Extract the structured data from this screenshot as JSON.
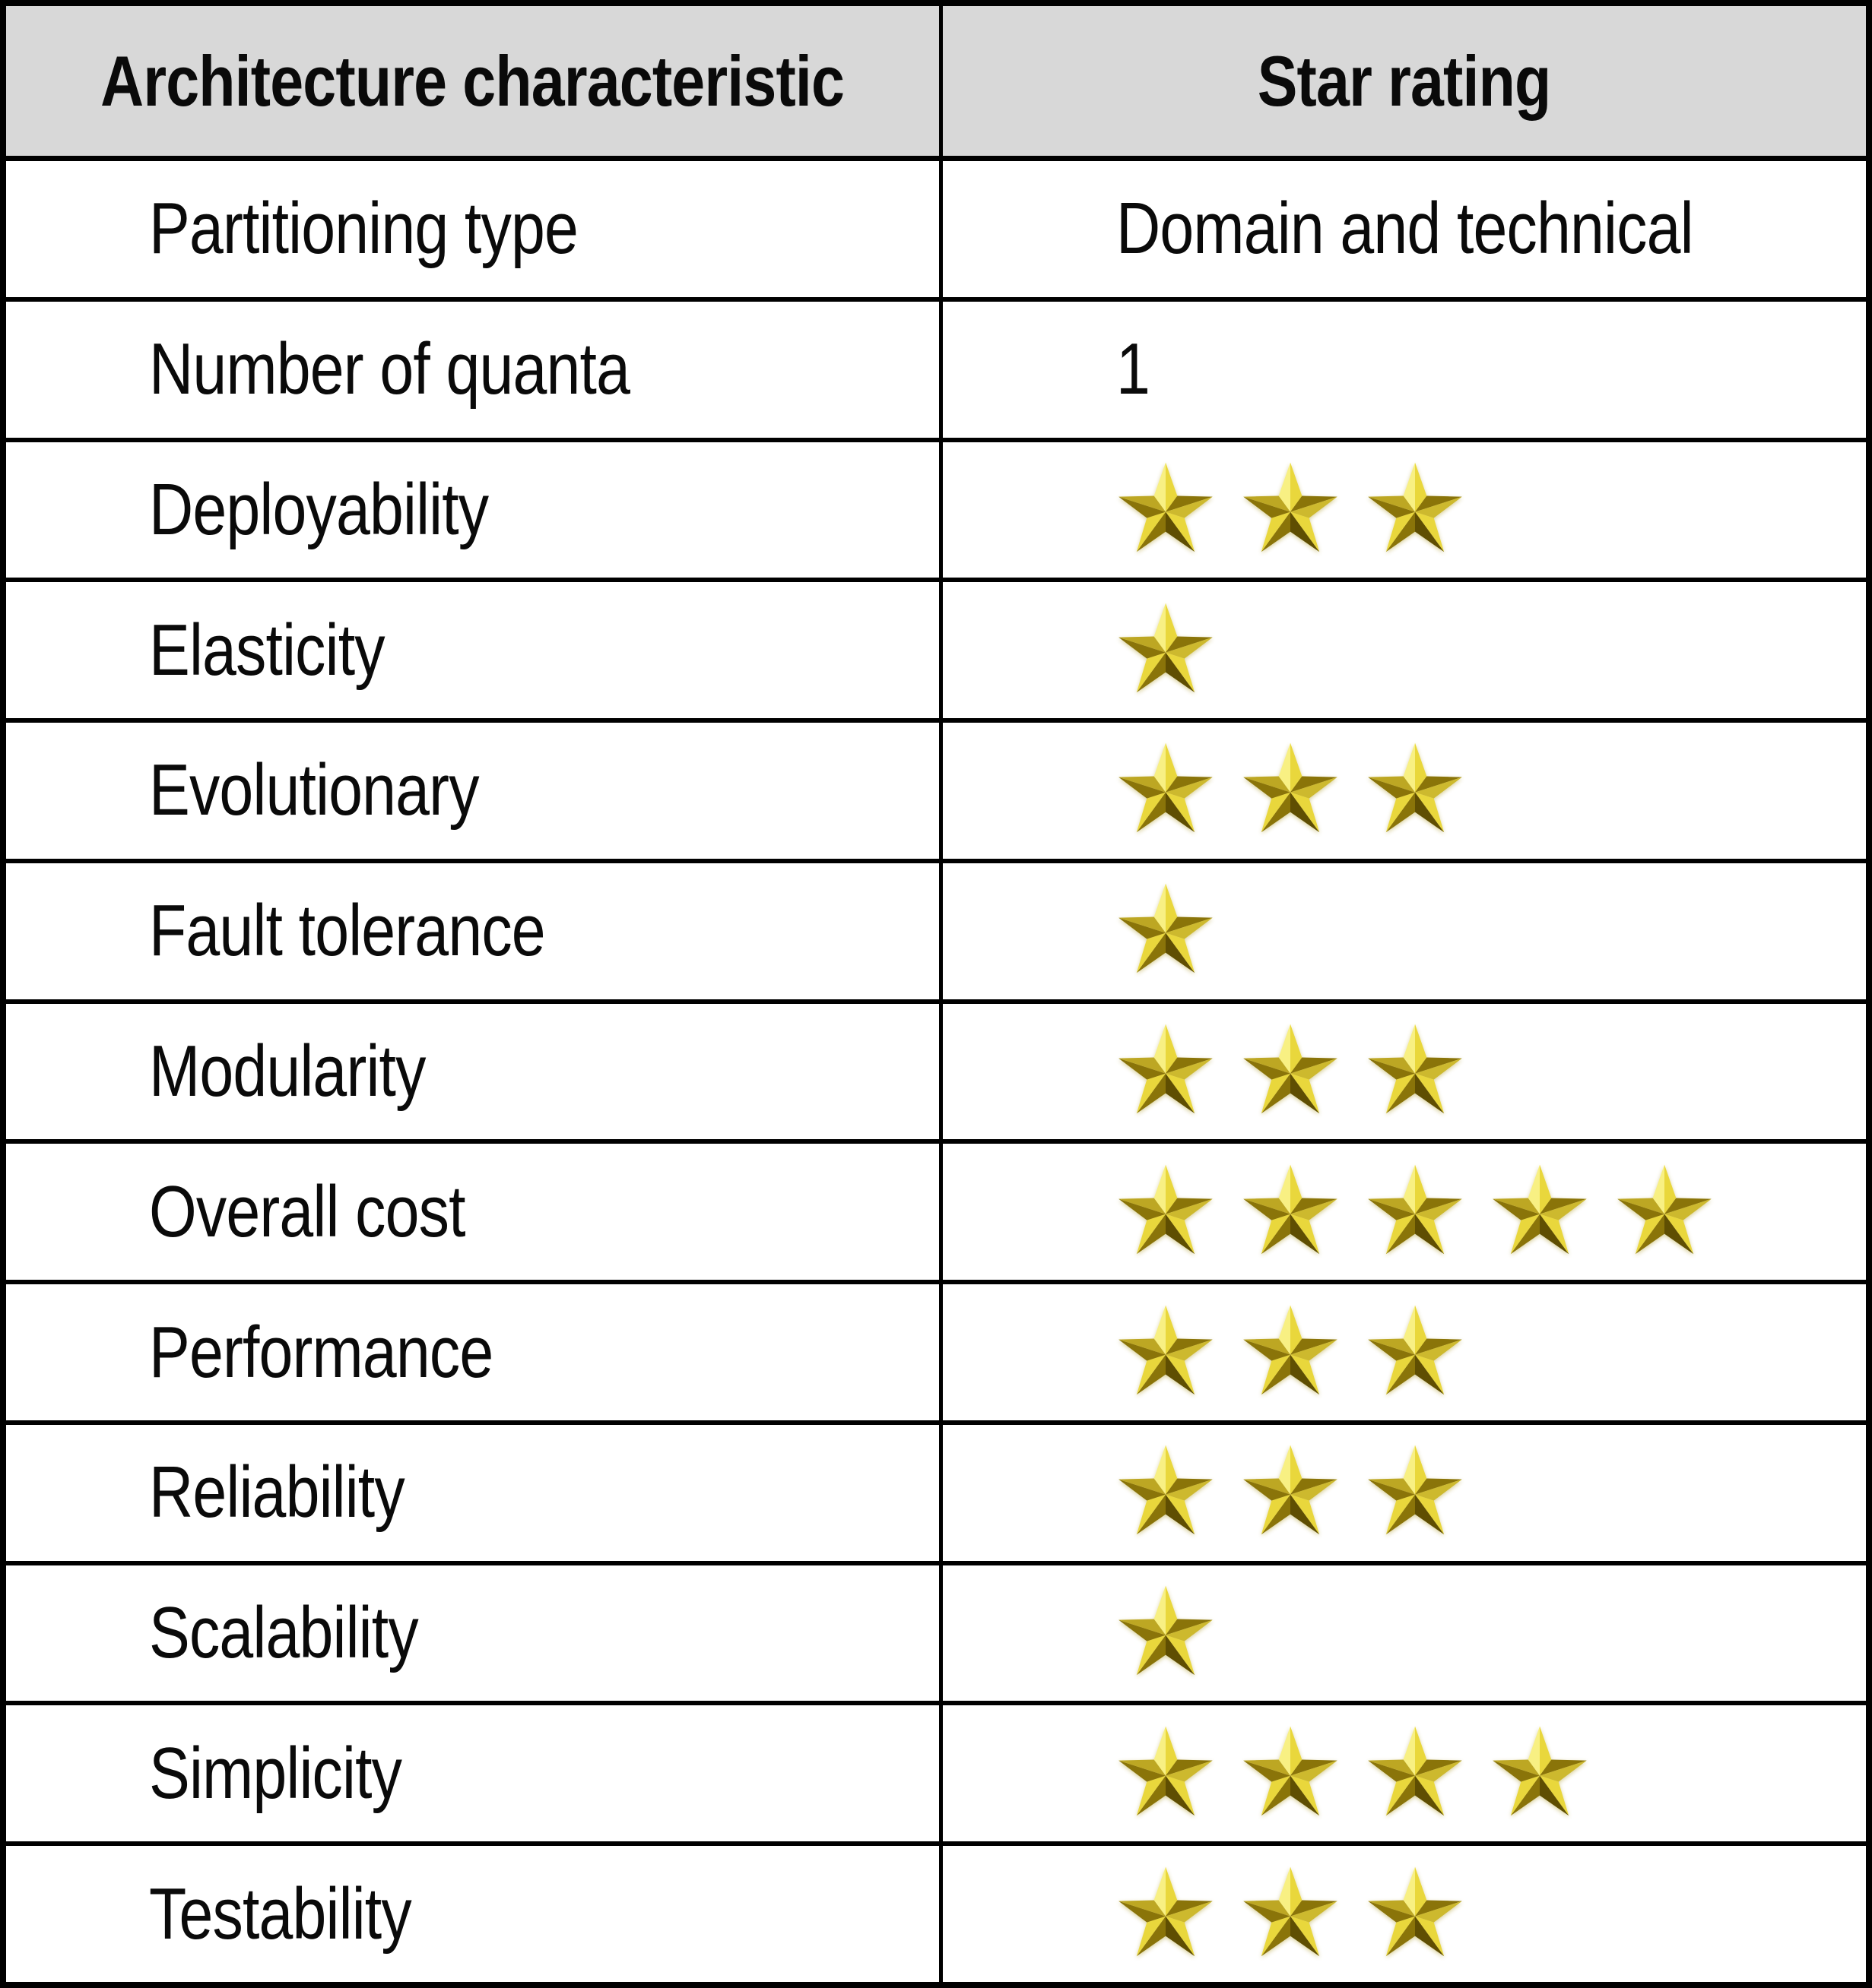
{
  "table": {
    "columns": [
      "Architecture characteristic",
      "Star rating"
    ],
    "rows": [
      {
        "characteristic": "Partitioning type",
        "rating_type": "text",
        "rating_text": "Domain and technical"
      },
      {
        "characteristic": "Number of quanta",
        "rating_type": "text",
        "rating_text": "1"
      },
      {
        "characteristic": "Deployability",
        "rating_type": "stars",
        "stars": 3
      },
      {
        "characteristic": "Elasticity",
        "rating_type": "stars",
        "stars": 1
      },
      {
        "characteristic": "Evolutionary",
        "rating_type": "stars",
        "stars": 3
      },
      {
        "characteristic": "Fault tolerance",
        "rating_type": "stars",
        "stars": 1
      },
      {
        "characteristic": "Modularity",
        "rating_type": "stars",
        "stars": 3
      },
      {
        "characteristic": "Overall cost",
        "rating_type": "stars",
        "stars": 5
      },
      {
        "characteristic": "Performance",
        "rating_type": "stars",
        "stars": 3
      },
      {
        "characteristic": "Reliability",
        "rating_type": "stars",
        "stars": 3
      },
      {
        "characteristic": "Scalability",
        "rating_type": "stars",
        "stars": 1
      },
      {
        "characteristic": "Simplicity",
        "rating_type": "stars",
        "stars": 4
      },
      {
        "characteristic": "Testability",
        "rating_type": "stars",
        "stars": 3
      }
    ],
    "max_stars": 5
  },
  "colors": {
    "header_bg": "#d8d8d8",
    "border": "#000000",
    "text": "#0a0a0a",
    "star_bright": "#f8f083",
    "star_yellow": "#e9d73c",
    "star_gold": "#cdb92e",
    "star_mid": "#bda723",
    "star_dark": "#8a7409",
    "star_deep": "#5f4e02"
  }
}
